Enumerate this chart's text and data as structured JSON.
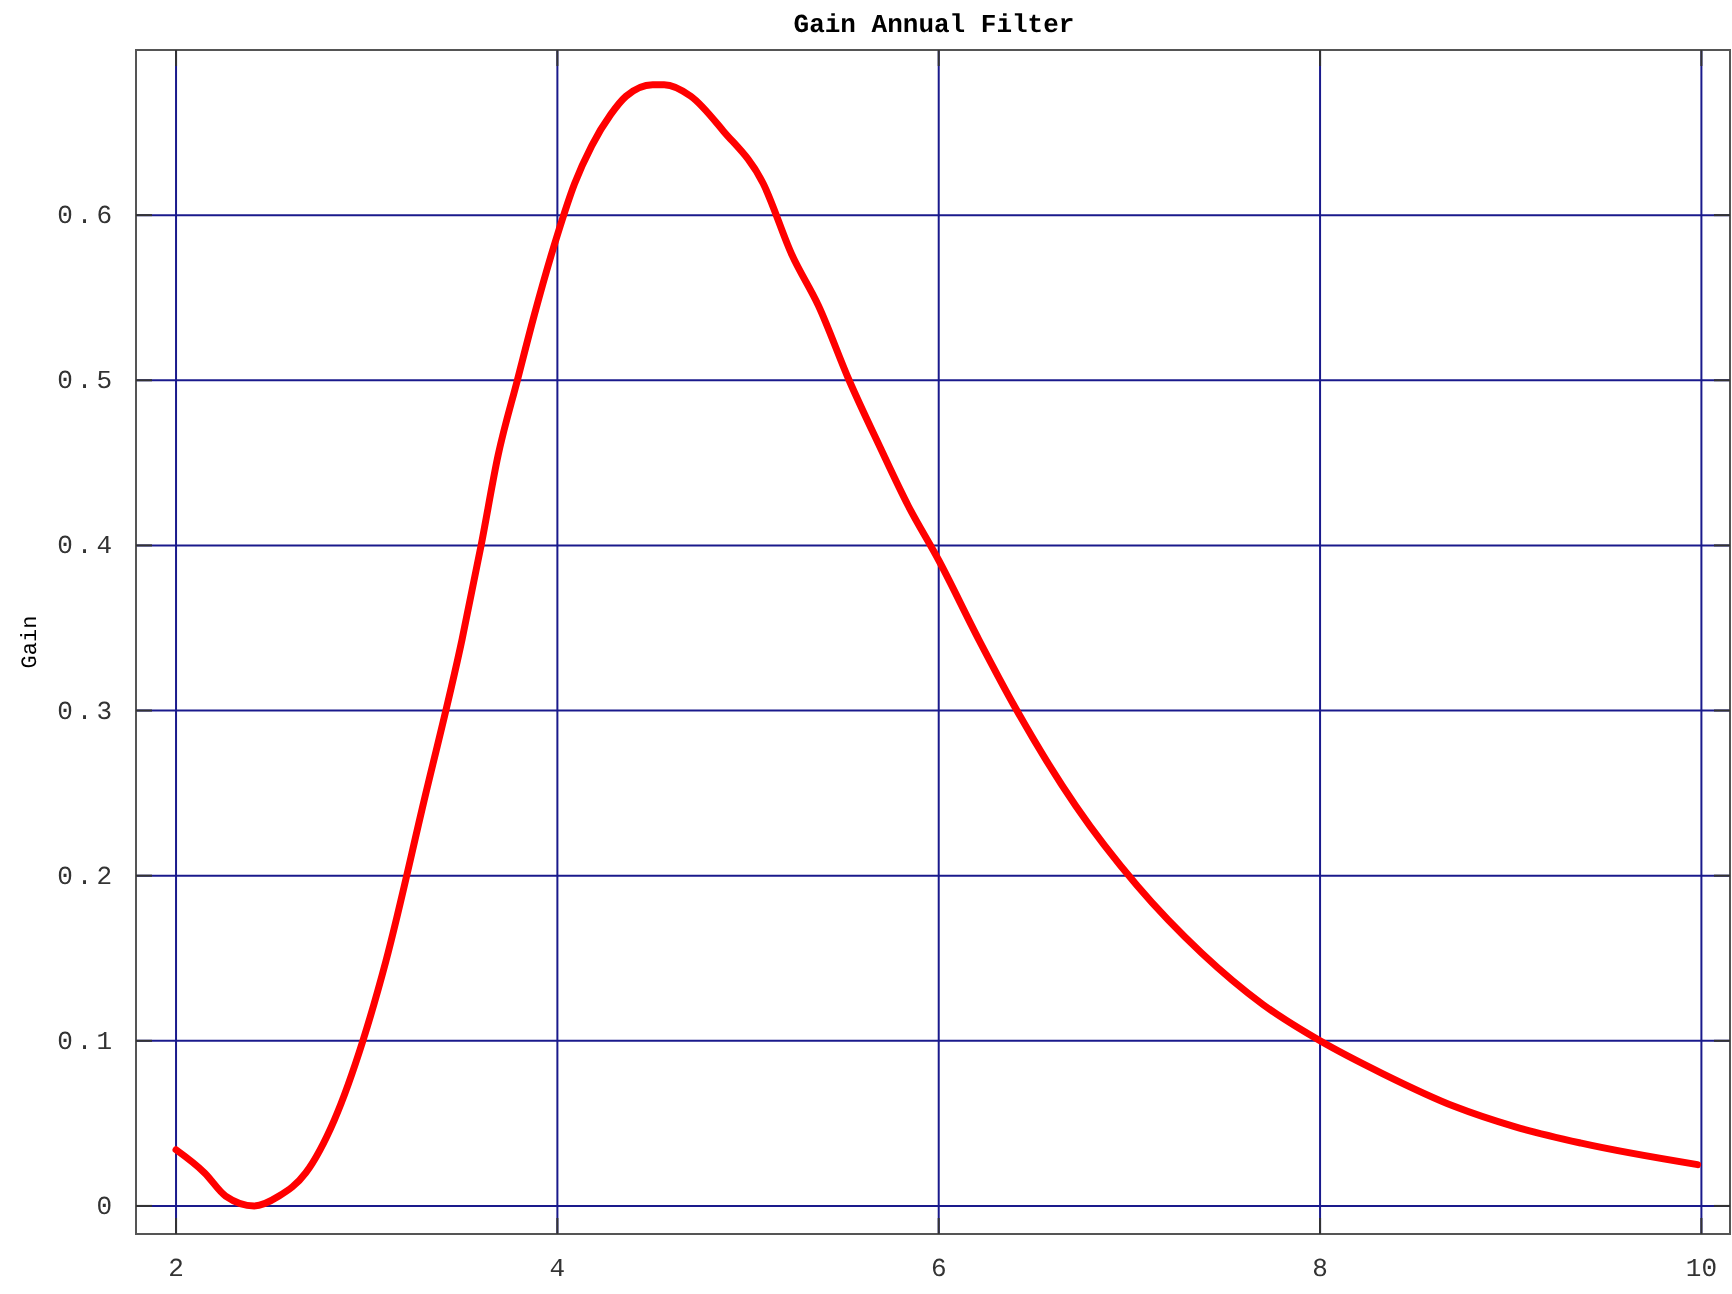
{
  "chart_data": {
    "type": "line",
    "title": "Gain Annual Filter",
    "ylabel": "Gain",
    "x": [
      2.0,
      2.15,
      2.26,
      2.41,
      2.54,
      2.68,
      2.83,
      2.98,
      3.1,
      3.3,
      3.5,
      3.6,
      3.69,
      3.79,
      3.88,
      4.0,
      4.09,
      4.18,
      4.28,
      4.36,
      4.5,
      4.56,
      4.7,
      4.87,
      5.08,
      5.23,
      5.37,
      5.53,
      5.69,
      5.84,
      6.0,
      6.21,
      6.41,
      6.72,
      7.04,
      7.38,
      7.7,
      8.0,
      8.33,
      8.71,
      9.02,
      9.37,
      9.98
    ],
    "series": [
      {
        "color": "#ff0000",
        "values": [
          0.034,
          0.02,
          0.006,
          0.0,
          0.006,
          0.02,
          0.052,
          0.1,
          0.148,
          0.245,
          0.343,
          0.4,
          0.455,
          0.5,
          0.54,
          0.588,
          0.619,
          0.642,
          0.661,
          0.672,
          0.679,
          0.679,
          0.672,
          0.651,
          0.619,
          0.576,
          0.545,
          0.5,
          0.46,
          0.424,
          0.391,
          0.343,
          0.3,
          0.242,
          0.194,
          0.153,
          0.122,
          0.1,
          0.08,
          0.06,
          0.048,
          0.038,
          0.025
        ]
      }
    ],
    "xlim": [
      1.79,
      10.15
    ],
    "ylim": [
      -0.017,
      0.7
    ],
    "xticks": [
      2,
      4,
      6,
      8,
      10
    ],
    "yticks": [
      0,
      0.1,
      0.2,
      0.3,
      0.4,
      0.5,
      0.6
    ],
    "grid": true,
    "marker": "none",
    "line_style": "solid"
  }
}
